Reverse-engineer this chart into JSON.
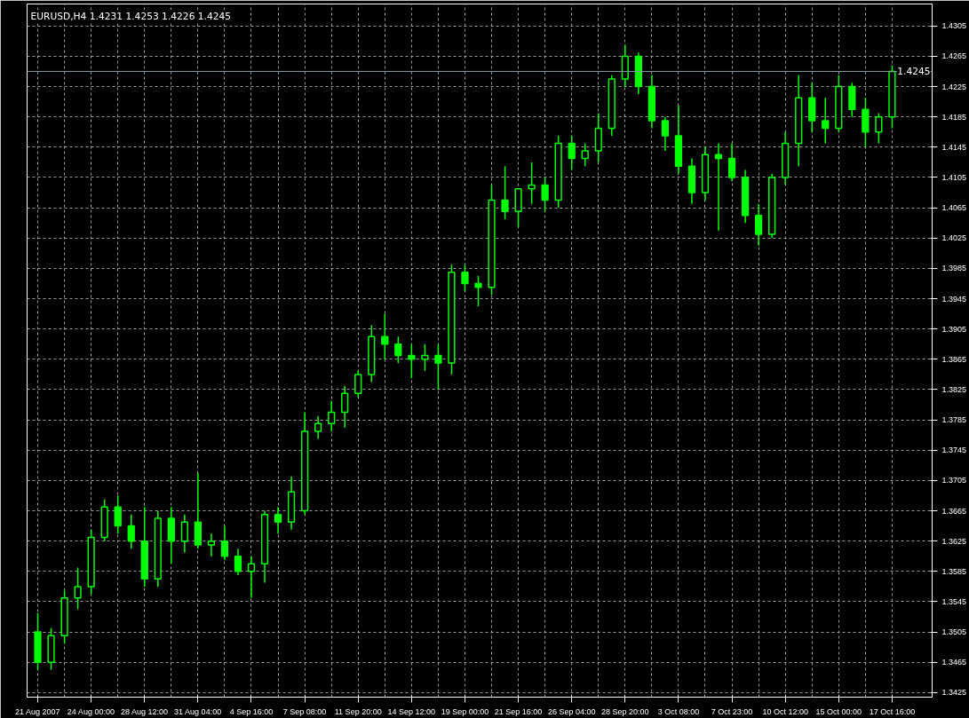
{
  "chart_data": {
    "type": "candlestick",
    "title": "EURUSD,H4  1.4231 1.4253 1.4226 1.4245",
    "categories": [
      "21 Aug 2007",
      null,
      null,
      null,
      "24 Aug 00:00",
      null,
      null,
      null,
      "28 Aug 12:00",
      null,
      null,
      null,
      "31 Aug 04:00",
      null,
      null,
      null,
      "4 Sep 16:00",
      null,
      null,
      null,
      "7 Sep 08:00",
      null,
      null,
      null,
      "11 Sep 20:00",
      null,
      null,
      null,
      "14 Sep 12:00",
      null,
      null,
      null,
      "19 Sep 00:00",
      null,
      null,
      null,
      "21 Sep 16:00",
      null,
      null,
      null,
      "26 Sep 04:00",
      null,
      null,
      null,
      "28 Sep 20:00",
      null,
      null,
      null,
      "3 Oct 08:00",
      null,
      null,
      null,
      "7 Oct 23:00",
      null,
      null,
      null,
      "10 Oct 12:00",
      null,
      null,
      null,
      "15 Oct 00:00",
      null,
      null,
      null,
      "17 Oct 16:00"
    ],
    "color": "#00ff00",
    "ohlc": [
      [
        1.3505,
        1.353,
        1.3455,
        1.3465
      ],
      [
        1.3465,
        1.351,
        1.3455,
        1.35
      ],
      [
        1.35,
        1.356,
        1.349,
        1.355
      ],
      [
        1.355,
        1.359,
        1.3535,
        1.3565
      ],
      [
        1.3565,
        1.364,
        1.3555,
        1.363
      ],
      [
        1.363,
        1.368,
        1.3625,
        1.367
      ],
      [
        1.367,
        1.3685,
        1.3635,
        1.3645
      ],
      [
        1.3645,
        1.366,
        1.3615,
        1.3625
      ],
      [
        1.3625,
        1.367,
        1.3565,
        1.3575
      ],
      [
        1.3575,
        1.3665,
        1.3565,
        1.3655
      ],
      [
        1.3655,
        1.367,
        1.3595,
        1.3625
      ],
      [
        1.3625,
        1.366,
        1.361,
        1.365
      ],
      [
        1.365,
        1.3715,
        1.3615,
        1.362
      ],
      [
        1.362,
        1.3635,
        1.3605,
        1.3625
      ],
      [
        1.3625,
        1.3645,
        1.36,
        1.3605
      ],
      [
        1.3605,
        1.3615,
        1.358,
        1.3585
      ],
      [
        1.3585,
        1.3605,
        1.355,
        1.3595
      ],
      [
        1.3595,
        1.3665,
        1.357,
        1.366
      ],
      [
        1.366,
        1.367,
        1.3635,
        1.365
      ],
      [
        1.365,
        1.371,
        1.364,
        1.369
      ],
      [
        1.3665,
        1.3795,
        1.366,
        1.377
      ],
      [
        1.377,
        1.379,
        1.376,
        1.378
      ],
      [
        1.378,
        1.381,
        1.377,
        1.3795
      ],
      [
        1.3795,
        1.383,
        1.3775,
        1.382
      ],
      [
        1.382,
        1.385,
        1.3815,
        1.3845
      ],
      [
        1.3845,
        1.391,
        1.3835,
        1.3895
      ],
      [
        1.3895,
        1.3925,
        1.3865,
        1.3885
      ],
      [
        1.3885,
        1.3895,
        1.386,
        1.387
      ],
      [
        1.387,
        1.3885,
        1.384,
        1.3865
      ],
      [
        1.3865,
        1.3885,
        1.385,
        1.387
      ],
      [
        1.387,
        1.3885,
        1.3825,
        1.386
      ],
      [
        1.386,
        1.399,
        1.3845,
        1.398
      ],
      [
        1.398,
        1.399,
        1.3955,
        1.3965
      ],
      [
        1.3965,
        1.3975,
        1.3935,
        1.396
      ],
      [
        1.396,
        1.4095,
        1.395,
        1.4075
      ],
      [
        1.4075,
        1.412,
        1.405,
        1.406
      ],
      [
        1.406,
        1.409,
        1.404,
        1.409
      ],
      [
        1.409,
        1.4125,
        1.407,
        1.4095
      ],
      [
        1.4095,
        1.4105,
        1.406,
        1.4075
      ],
      [
        1.4075,
        1.416,
        1.4065,
        1.415
      ],
      [
        1.415,
        1.416,
        1.4115,
        1.413
      ],
      [
        1.413,
        1.415,
        1.412,
        1.414
      ],
      [
        1.414,
        1.419,
        1.4125,
        1.417
      ],
      [
        1.417,
        1.424,
        1.416,
        1.4235
      ],
      [
        1.4235,
        1.428,
        1.4225,
        1.4265
      ],
      [
        1.4265,
        1.427,
        1.4215,
        1.4225
      ],
      [
        1.4225,
        1.424,
        1.417,
        1.418
      ],
      [
        1.418,
        1.4185,
        1.414,
        1.416
      ],
      [
        1.416,
        1.42,
        1.411,
        1.412
      ],
      [
        1.412,
        1.413,
        1.407,
        1.4085
      ],
      [
        1.4085,
        1.4145,
        1.4075,
        1.4135
      ],
      [
        1.4135,
        1.415,
        1.4035,
        1.413
      ],
      [
        1.413,
        1.415,
        1.41,
        1.4105
      ],
      [
        1.4105,
        1.4115,
        1.4045,
        1.4055
      ],
      [
        1.4055,
        1.407,
        1.4015,
        1.403
      ],
      [
        1.403,
        1.411,
        1.4025,
        1.4105
      ],
      [
        1.4105,
        1.4165,
        1.4095,
        1.415
      ],
      [
        1.415,
        1.424,
        1.412,
        1.421
      ],
      [
        1.421,
        1.423,
        1.4165,
        1.418
      ],
      [
        1.418,
        1.421,
        1.415,
        1.417
      ],
      [
        1.417,
        1.424,
        1.4165,
        1.4225
      ],
      [
        1.4225,
        1.423,
        1.4185,
        1.4195
      ],
      [
        1.4195,
        1.421,
        1.4145,
        1.4165
      ],
      [
        1.4165,
        1.419,
        1.415,
        1.4185
      ],
      [
        1.4185,
        1.4253,
        1.417,
        1.4245
      ]
    ],
    "ylim": [
      1.3419,
      1.4334
    ],
    "yticks": [
      1.3425,
      1.3465,
      1.3505,
      1.3545,
      1.3585,
      1.3625,
      1.3665,
      1.3705,
      1.3745,
      1.3785,
      1.3825,
      1.3865,
      1.3905,
      1.3945,
      1.3985,
      1.4025,
      1.4065,
      1.4105,
      1.4145,
      1.4185,
      1.4225,
      1.4265,
      1.4305
    ],
    "ref_lines": [
      {
        "axis": "y",
        "value": 1.4245,
        "label": "1.4245",
        "color": "#8a9aa8"
      }
    ],
    "grid": true
  }
}
